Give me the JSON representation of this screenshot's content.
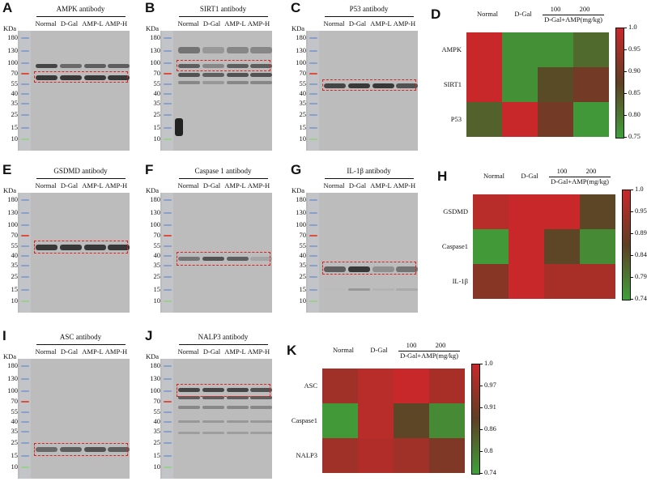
{
  "lanes": [
    "Normal",
    "D-Gal",
    "AMP-L",
    "AMP-H"
  ],
  "kda_label": "KDa",
  "markers": [
    "180",
    "130",
    "100",
    "70",
    "55",
    "40",
    "35",
    "25",
    "15",
    "10"
  ],
  "blots": {
    "A": {
      "letter": "A",
      "title": "AMPK antibody"
    },
    "B": {
      "letter": "B",
      "title": "SIRT1 antibody"
    },
    "C": {
      "letter": "C",
      "title": "P53 antibody"
    },
    "E": {
      "letter": "E",
      "title": "GSDMD antibody"
    },
    "F": {
      "letter": "F",
      "title": "Caspase 1 antibody"
    },
    "G": {
      "letter": "G",
      "title": "IL-1β antibody"
    },
    "I": {
      "letter": "I",
      "title": "ASC antibody"
    },
    "J": {
      "letter": "J",
      "title": "NALP3 antibody"
    }
  },
  "heatmaps": {
    "D": {
      "letter": "D",
      "col_normal": "Normal",
      "col_dgal": "D-Gal",
      "dose1": "100",
      "dose2": "200",
      "group_label": "D-Gal+AMP(mg/kg)",
      "rows": [
        "AMPK",
        "SIRT1",
        "P53"
      ],
      "scale": [
        "1.0",
        "0.95",
        "0.90",
        "0.85",
        "0.80",
        "0.75"
      ],
      "values": [
        [
          1.0,
          0.77,
          0.77,
          0.82
        ],
        [
          1.0,
          0.77,
          0.86,
          0.9
        ],
        [
          0.83,
          1.0,
          0.9,
          0.76
        ]
      ]
    },
    "H": {
      "letter": "H",
      "col_normal": "Normal",
      "col_dgal": "D-Gal",
      "dose1": "100",
      "dose2": "200",
      "group_label": "D-Gal+AMP(mg/kg)",
      "rows": [
        "GSDMD",
        "Caspase1",
        "IL-1β"
      ],
      "scale": [
        "1.0",
        "0.95",
        "0.89",
        "0.84",
        "0.79",
        "0.74"
      ],
      "values": [
        [
          0.98,
          1.0,
          1.0,
          0.86
        ],
        [
          0.75,
          1.0,
          0.86,
          0.77
        ],
        [
          0.92,
          1.0,
          0.96,
          0.96
        ]
      ]
    },
    "K": {
      "letter": "K",
      "col_normal": "Normal",
      "col_dgal": "D-Gal",
      "dose1": "100",
      "dose2": "200",
      "group_label": "D-Gal+AMP(mg/kg)",
      "rows": [
        "ASC",
        "Caspase1",
        "NALP3"
      ],
      "scale": [
        "1.0",
        "0.97",
        "0.91",
        "0.86",
        "0.8",
        "0.74"
      ],
      "values": [
        [
          0.95,
          0.98,
          1.0,
          0.96
        ],
        [
          0.75,
          0.98,
          0.86,
          0.77
        ],
        [
          0.95,
          0.97,
          0.95,
          0.91
        ]
      ]
    }
  },
  "colors": {
    "high": "#c8282a",
    "mid": "#5e3f24",
    "low": "#3fa03a"
  }
}
